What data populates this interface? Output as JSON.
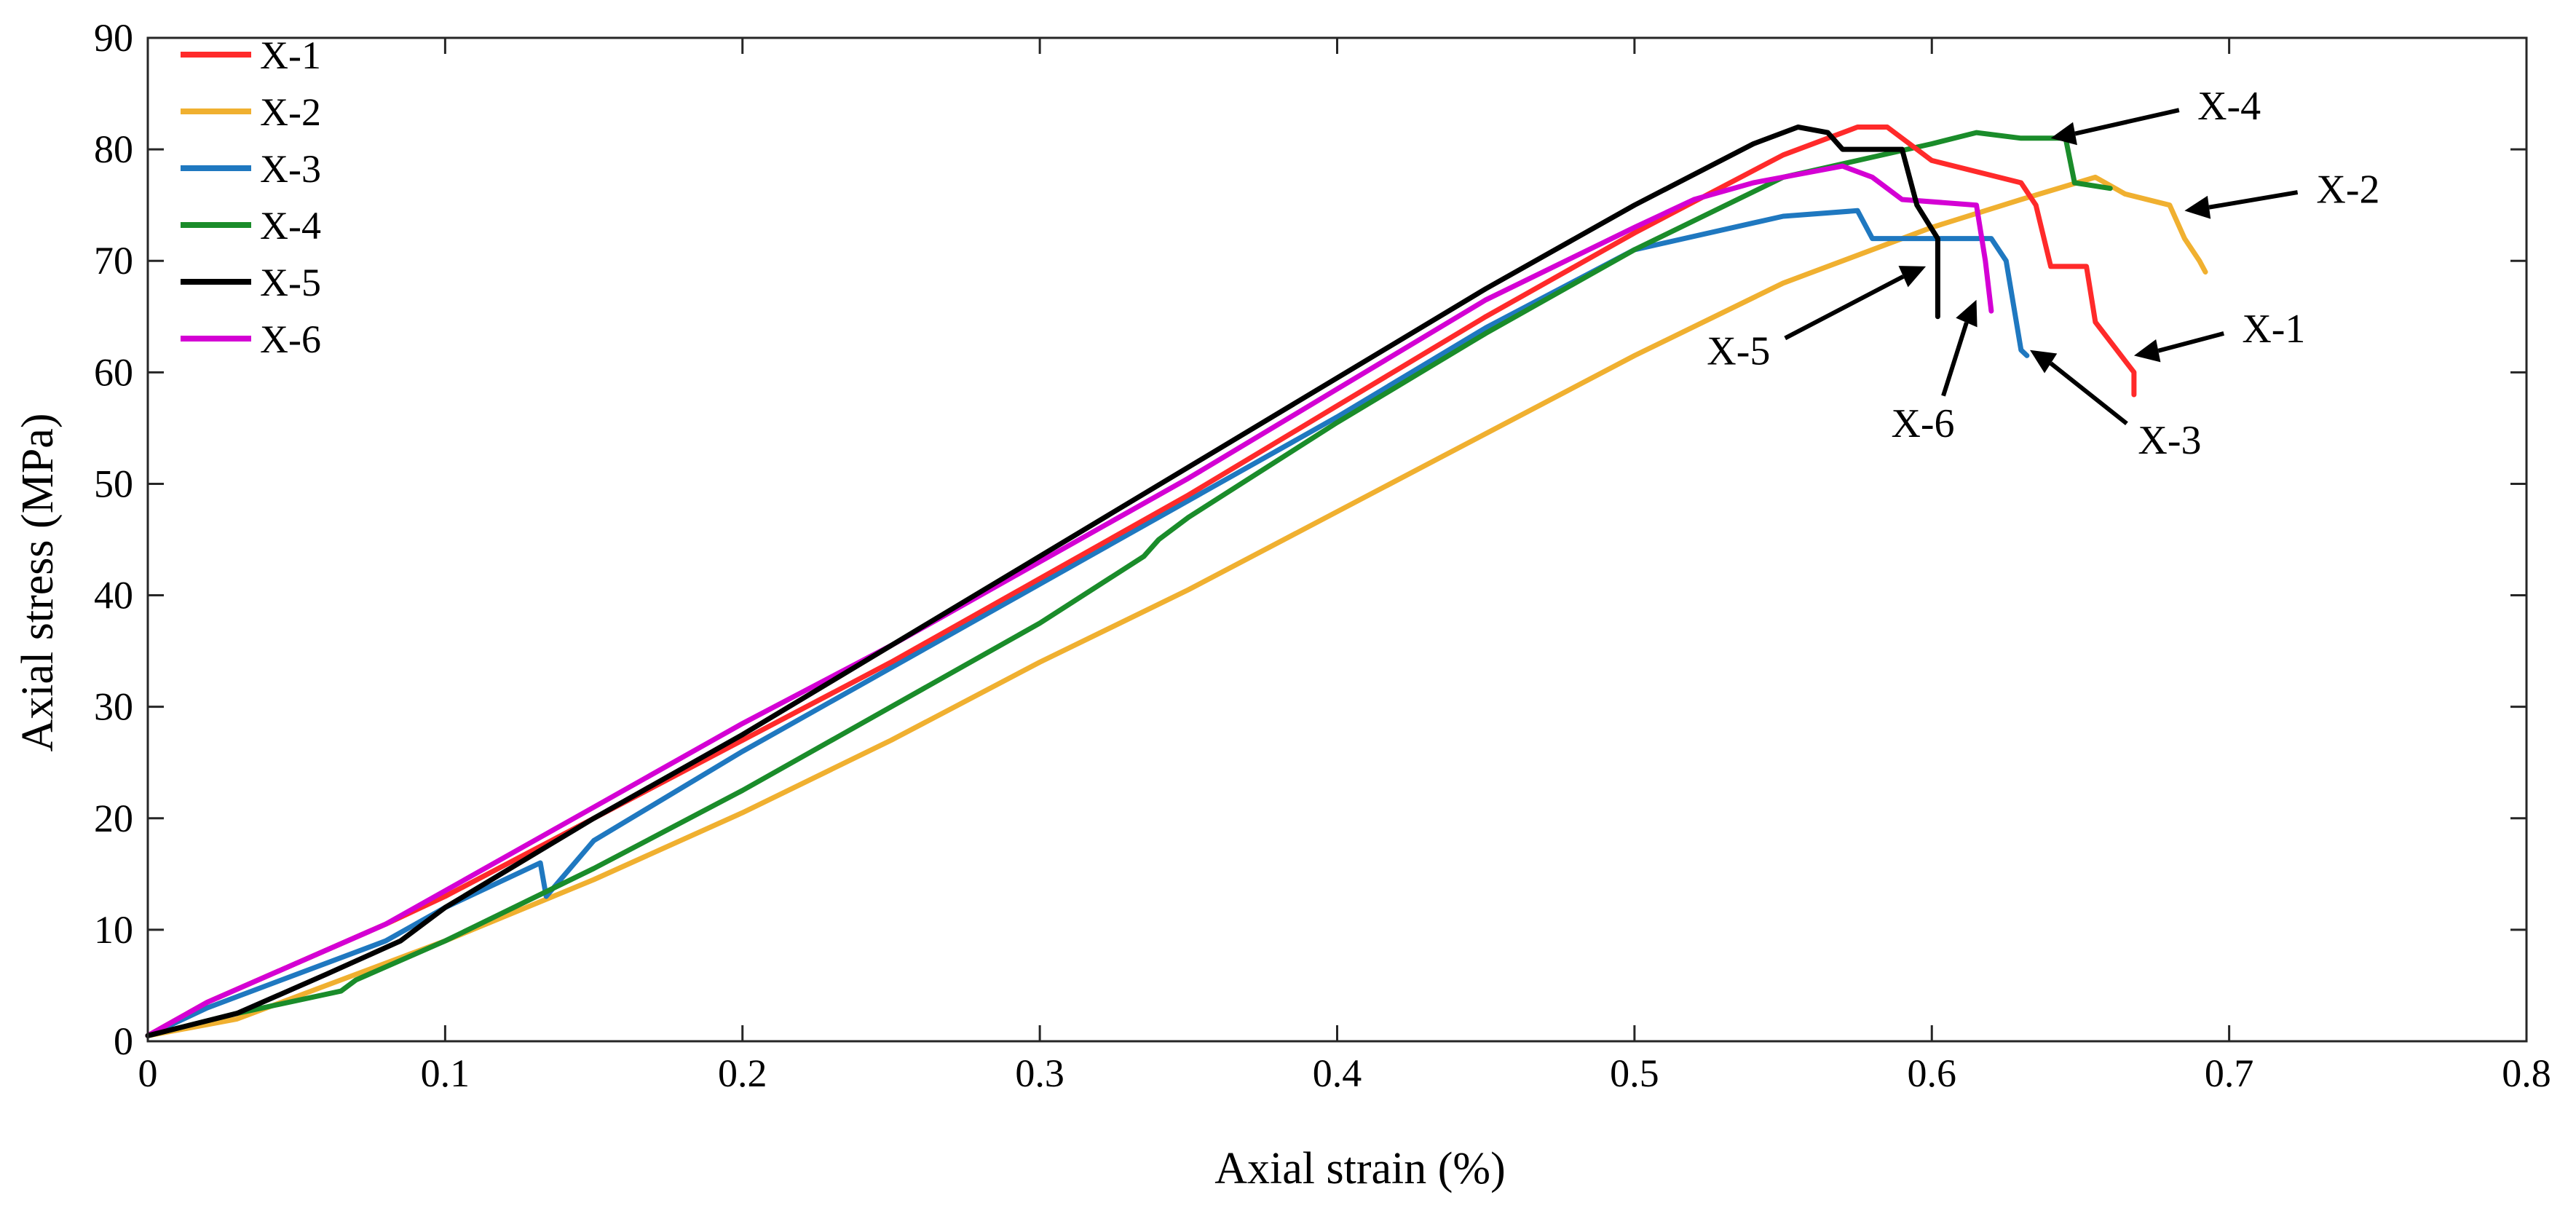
{
  "chart_data": {
    "type": "line",
    "title": "",
    "xlabel": "Axial strain (%)",
    "ylabel": "Axial stress (MPa)",
    "xlim": [
      0,
      0.8
    ],
    "ylim": [
      0,
      90
    ],
    "xticks": [
      0,
      0.1,
      0.2,
      0.3,
      0.4,
      0.5,
      0.6,
      0.7,
      0.8
    ],
    "xtick_labels": [
      "0",
      "0.1",
      "0.2",
      "0.3",
      "0.4",
      "0.5",
      "0.6",
      "0.7",
      "0.8"
    ],
    "yticks": [
      0,
      10,
      20,
      30,
      40,
      50,
      60,
      70,
      80,
      90
    ],
    "ytick_labels": [
      "0",
      "10",
      "20",
      "30",
      "40",
      "50",
      "60",
      "70",
      "80",
      "90"
    ],
    "grid": false,
    "legend_position": "top-left",
    "series": [
      {
        "name": "X-1",
        "color": "#ff2a2a",
        "x": [
          0,
          0.02,
          0.05,
          0.08,
          0.1,
          0.15,
          0.2,
          0.25,
          0.3,
          0.35,
          0.4,
          0.45,
          0.5,
          0.55,
          0.575,
          0.585,
          0.6,
          0.63,
          0.635,
          0.64,
          0.652,
          0.655,
          0.668,
          0.668
        ],
        "y": [
          0.5,
          3.5,
          7,
          10.5,
          13,
          20,
          27,
          34,
          41.5,
          49,
          57,
          65,
          72.5,
          79.5,
          82,
          82,
          79,
          77,
          75,
          69.5,
          69.5,
          64.5,
          60,
          58
        ]
      },
      {
        "name": "X-2",
        "color": "#f0b030",
        "x": [
          0,
          0.03,
          0.06,
          0.1,
          0.15,
          0.2,
          0.25,
          0.3,
          0.35,
          0.4,
          0.45,
          0.5,
          0.55,
          0.6,
          0.63,
          0.655,
          0.665,
          0.68,
          0.685,
          0.69,
          0.692
        ],
        "y": [
          0.5,
          2,
          5,
          9,
          14.5,
          20.5,
          27,
          34,
          40.5,
          47.5,
          54.5,
          61.5,
          68,
          73,
          75.5,
          77.5,
          76,
          75,
          72,
          70,
          69
        ]
      },
      {
        "name": "X-3",
        "color": "#1f78c0",
        "x": [
          0,
          0.02,
          0.05,
          0.08,
          0.1,
          0.132,
          0.134,
          0.15,
          0.2,
          0.25,
          0.3,
          0.35,
          0.4,
          0.45,
          0.5,
          0.55,
          0.575,
          0.58,
          0.62,
          0.625,
          0.63,
          0.632
        ],
        "y": [
          0.5,
          3,
          6,
          9,
          12,
          16,
          13,
          18,
          26,
          33.5,
          41,
          48.5,
          56,
          64,
          71,
          74,
          74.5,
          72,
          72,
          70,
          62,
          61.5
        ]
      },
      {
        "name": "X-4",
        "color": "#1a8c2a",
        "x": [
          0,
          0.03,
          0.065,
          0.07,
          0.1,
          0.15,
          0.2,
          0.25,
          0.3,
          0.335,
          0.34,
          0.35,
          0.4,
          0.45,
          0.5,
          0.55,
          0.6,
          0.615,
          0.63,
          0.645,
          0.648,
          0.66
        ],
        "y": [
          0.5,
          2.5,
          4.5,
          5.5,
          9,
          15.5,
          22.5,
          30,
          37.5,
          43.5,
          45,
          47,
          55.5,
          63.5,
          71,
          77.5,
          80.5,
          81.5,
          81,
          81,
          77,
          76.5
        ]
      },
      {
        "name": "X-5",
        "color": "#000000",
        "x": [
          0,
          0.03,
          0.06,
          0.085,
          0.1,
          0.15,
          0.2,
          0.25,
          0.3,
          0.35,
          0.4,
          0.45,
          0.5,
          0.54,
          0.555,
          0.565,
          0.57,
          0.59,
          0.595,
          0.602,
          0.602
        ],
        "y": [
          0.5,
          2.5,
          6,
          9,
          12,
          20,
          27.5,
          35.5,
          43.5,
          51.5,
          59.5,
          67.5,
          75,
          80.5,
          82,
          81.5,
          80,
          80,
          75,
          72,
          65
        ]
      },
      {
        "name": "X-6",
        "color": "#d400d4",
        "x": [
          0,
          0.02,
          0.05,
          0.08,
          0.1,
          0.15,
          0.2,
          0.25,
          0.3,
          0.35,
          0.4,
          0.45,
          0.5,
          0.52,
          0.54,
          0.57,
          0.58,
          0.59,
          0.615,
          0.618,
          0.62
        ],
        "y": [
          0.5,
          3.5,
          7,
          10.5,
          13.5,
          21,
          28.5,
          35.5,
          43,
          50.5,
          58.5,
          66.5,
          73,
          75.5,
          77,
          78.5,
          77.5,
          75.5,
          75,
          70,
          65.5
        ]
      }
    ],
    "annotations": [
      {
        "label": "X-4",
        "series": "X-4",
        "target": [
          0.64,
          81
        ],
        "text_at": [
          0.7,
          84
        ]
      },
      {
        "label": "X-2",
        "series": "X-2",
        "target": [
          0.685,
          74.5
        ],
        "text_at": [
          0.74,
          76.5
        ]
      },
      {
        "label": "X-1",
        "series": "X-1",
        "target": [
          0.668,
          61.5
        ],
        "text_at": [
          0.715,
          64
        ]
      },
      {
        "label": "X-5",
        "series": "X-5",
        "target": [
          0.598,
          69.5
        ],
        "text_at": [
          0.535,
          62
        ]
      },
      {
        "label": "X-6",
        "series": "X-6",
        "target": [
          0.615,
          66.5
        ],
        "text_at": [
          0.597,
          55.5
        ]
      },
      {
        "label": "X-3",
        "series": "X-3",
        "target": [
          0.633,
          62
        ],
        "text_at": [
          0.68,
          54
        ]
      }
    ]
  }
}
